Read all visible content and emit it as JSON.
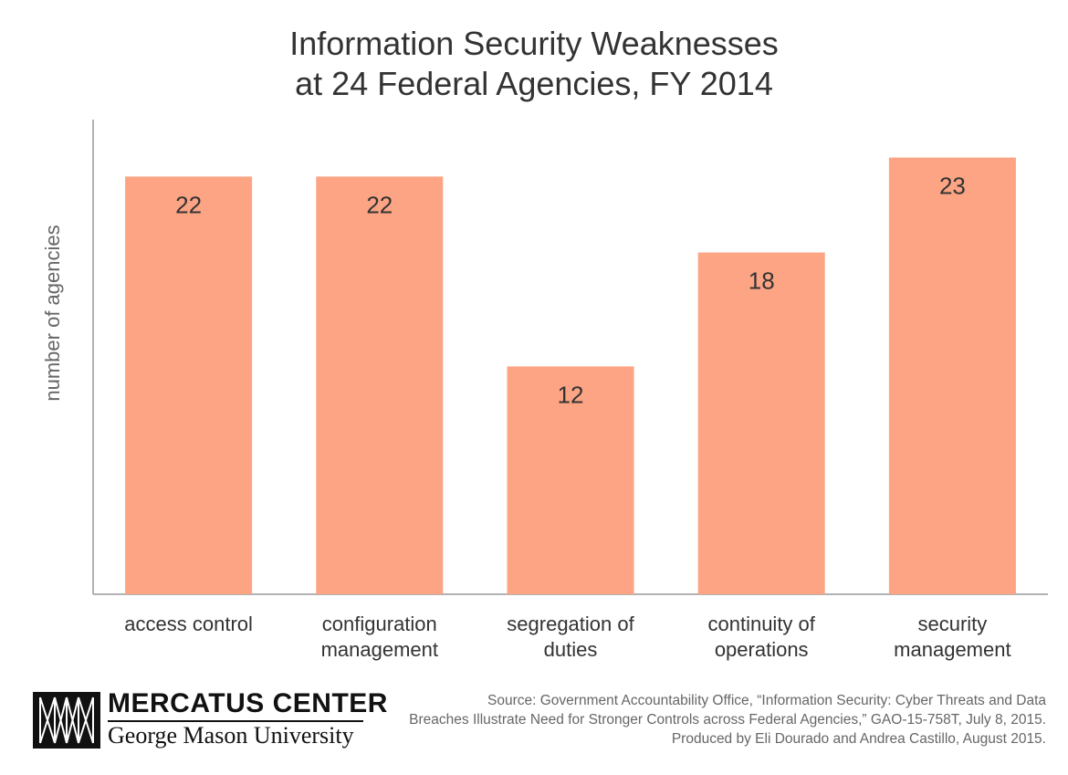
{
  "chart_data": {
    "type": "bar",
    "title": [
      "Information Security Weaknesses",
      "at 24 Federal Agencies, FY 2014"
    ],
    "ylabel": "number of agencies",
    "categories": [
      [
        "access control"
      ],
      [
        "configuration",
        "management"
      ],
      [
        "segregation of",
        "duties"
      ],
      [
        "continuity of",
        "operations"
      ],
      [
        "security",
        "management"
      ]
    ],
    "values": [
      22,
      22,
      12,
      18,
      23
    ],
    "ylim": [
      0,
      25
    ],
    "grid": false,
    "bar_color": "#fca484",
    "axis_color": "#999999"
  },
  "logo": {
    "name": "MERCATUS CENTER",
    "sub": "George Mason University"
  },
  "source": [
    "Source: Government Accountability Office, “Information Security: Cyber Threats and Data",
    "Breaches Illustrate Need for Stronger Controls across Federal Agencies,” GAO-15-758T, July 8, 2015.",
    "Produced by Eli Dourado and Andrea Castillo, August 2015."
  ]
}
